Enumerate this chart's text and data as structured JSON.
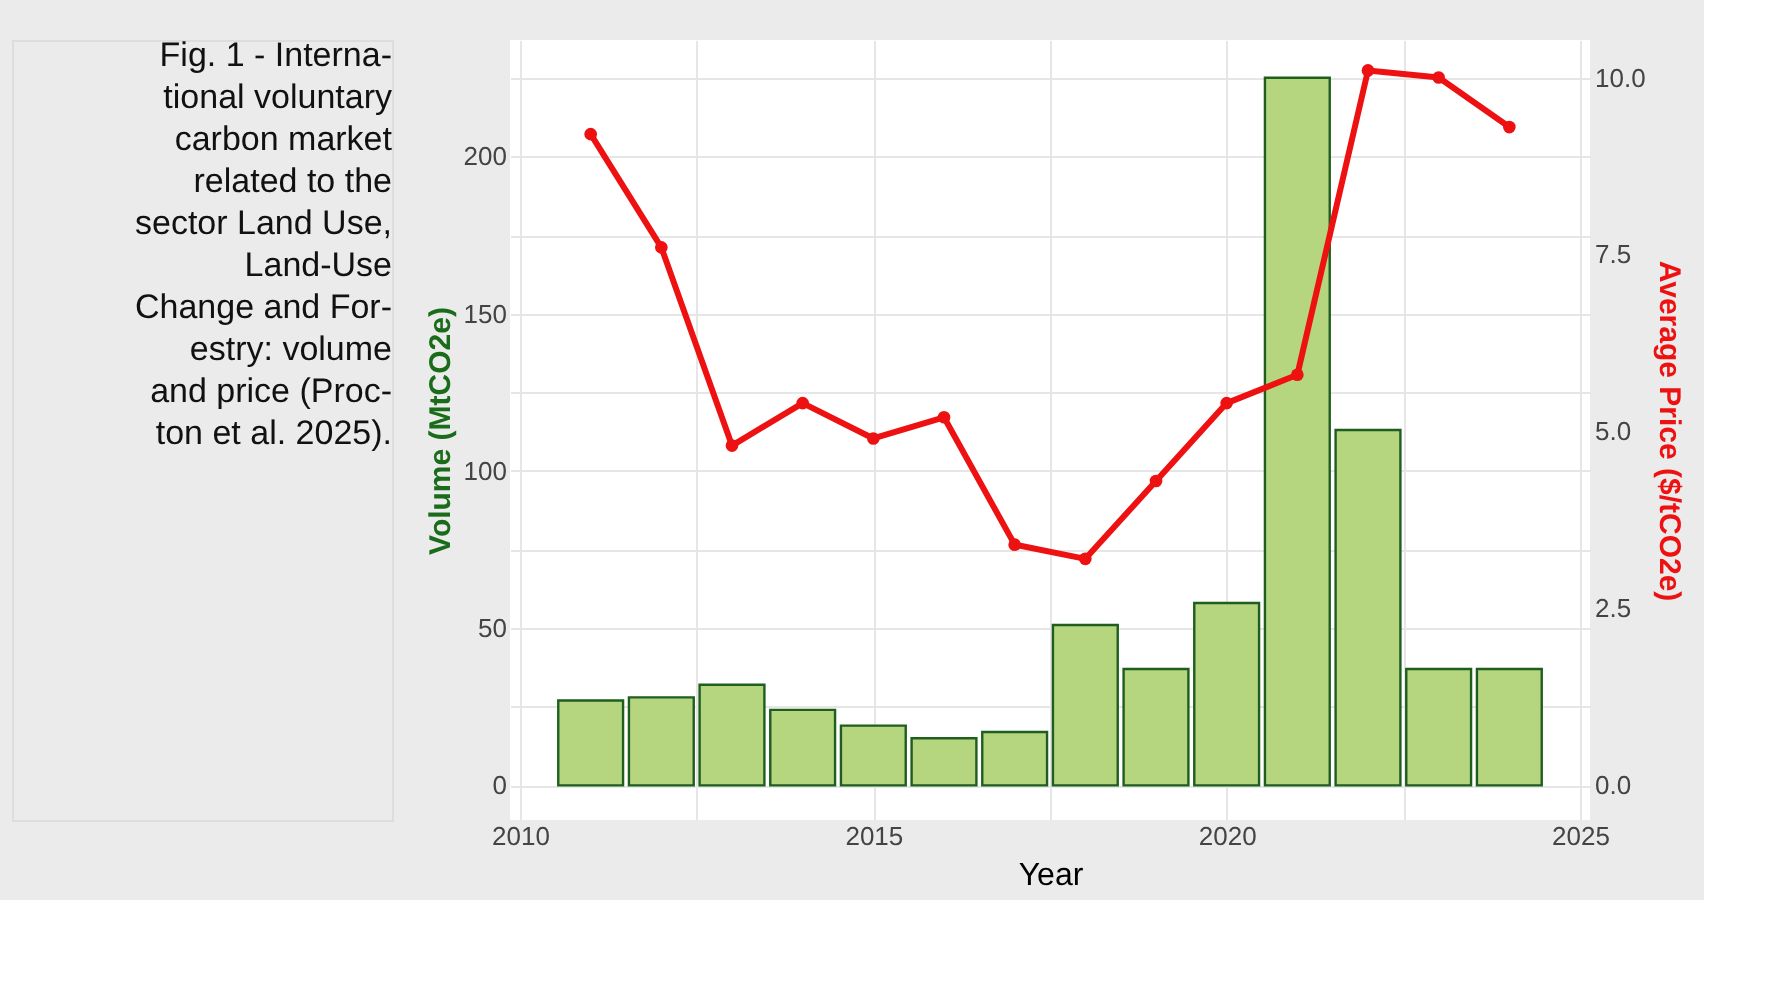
{
  "chart_data": {
    "type": "bar",
    "xlabel": "Year",
    "ylabel": "Volume (MtCO2e)",
    "y2label": "Average Price ($/tCO2e)",
    "annotations": [
      "Fig. 1 - Interna-\ntional voluntary\ncarbon market\nrelated to the\nsector Land Use,\nLand-Use\nChange and For-\nestry: volume\nand price (Proc-\nton et al. 2025)."
    ],
    "x": [
      2011,
      2012,
      2013,
      2014,
      2015,
      2016,
      2017,
      2018,
      2019,
      2020,
      2021,
      2022,
      2023,
      2024
    ],
    "series": [
      {
        "color": "#b5d67e",
        "values": [
          27,
          28,
          32,
          24,
          19,
          15,
          17,
          51,
          37,
          58,
          225,
          113,
          37,
          37
        ]
      },
      {
        "type": "line",
        "axis": "y2",
        "color": "#ee1111",
        "marker": "circle",
        "line_style": "solid",
        "values": [
          9.2,
          7.6,
          4.8,
          5.4,
          4.9,
          5.2,
          3.4,
          3.2,
          4.3,
          5.4,
          5.8,
          10.1,
          10.0,
          9.3
        ]
      }
    ],
    "xlim": [
      2010,
      2025
    ],
    "xticks": [
      2010,
      {
        "value": 2012.5,
        "label": null
      },
      2015,
      {
        "value": 2017.5,
        "label": null
      },
      2020,
      {
        "value": 2022.5,
        "label": null
      },
      2025
    ],
    "ylim": [
      -11,
      237
    ],
    "yticks": [
      0,
      {
        "value": 25,
        "label": null
      },
      50,
      {
        "value": 75,
        "label": null
      },
      100,
      {
        "value": 125,
        "label": null
      },
      150,
      {
        "value": 175,
        "label": null
      },
      200,
      {
        "value": 225,
        "label": null
      }
    ],
    "y2lim": [
      -0.49,
      10.53
    ],
    "y2ticks": [
      {
        "value": 0,
        "label": "0.0"
      },
      2.5,
      {
        "value": 5,
        "label": "5.0"
      },
      7.5,
      {
        "value": 10,
        "label": "10.0"
      }
    ],
    "grid": true
  }
}
